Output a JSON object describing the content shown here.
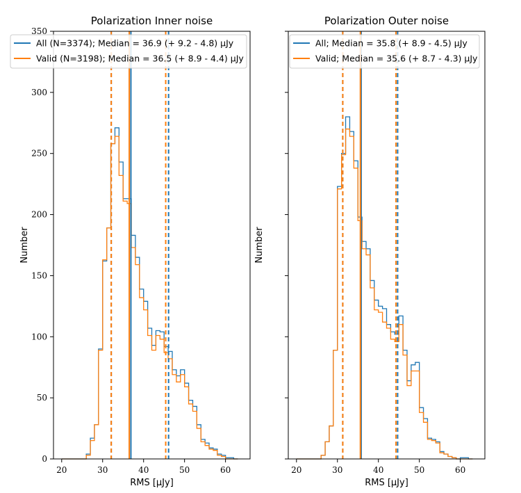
{
  "chart_data": [
    {
      "type": "histogram",
      "title": "Polarization Inner noise",
      "xlabel": "RMS [μJy]",
      "ylabel": "Number",
      "xlim": [
        18,
        66
      ],
      "ylim": [
        0,
        350
      ],
      "xticks": [
        20,
        30,
        40,
        50,
        60
      ],
      "yticks": [
        0,
        50,
        100,
        150,
        200,
        250,
        300,
        350
      ],
      "show_ytick_labels": true,
      "grid": false,
      "legend_position": "top",
      "bins": [
        20,
        21,
        22,
        23,
        24,
        25,
        26,
        27,
        28,
        29,
        30,
        31,
        32,
        33,
        34,
        35,
        36,
        37,
        38,
        39,
        40,
        41,
        42,
        43,
        44,
        45,
        46,
        47,
        48,
        49,
        50,
        51,
        52,
        53,
        54,
        55,
        56,
        57,
        58,
        59,
        60,
        61,
        62,
        63
      ],
      "series": [
        {
          "name": "All (N=3374); Median = 36.9 (+ 9.2 - 4.8) μJy",
          "color": "#1f77b4",
          "counts": [
            0,
            0,
            0,
            0,
            0,
            0,
            4,
            17,
            28,
            90,
            162,
            189,
            258,
            271,
            243,
            213,
            213,
            183,
            165,
            139,
            129,
            107,
            93,
            105,
            104,
            92,
            88,
            73,
            68,
            73,
            62,
            48,
            43,
            28,
            16,
            13,
            9,
            8,
            4,
            3,
            1,
            1,
            0
          ],
          "median": 36.9,
          "lower": 32.1,
          "upper": 46.1
        },
        {
          "name": "Valid (N=3198); Median = 36.5 (+ 8.9 - 4.4) μJy",
          "color": "#ff7f0e",
          "counts": [
            0,
            0,
            0,
            0,
            0,
            0,
            3,
            15,
            28,
            89,
            163,
            189,
            258,
            264,
            232,
            211,
            209,
            173,
            159,
            132,
            122,
            101,
            89,
            101,
            98,
            87,
            82,
            69,
            63,
            69,
            59,
            45,
            39,
            25,
            14,
            11,
            8,
            7,
            3,
            2,
            0,
            0,
            0
          ],
          "median": 36.5,
          "lower": 32.1,
          "upper": 45.4
        }
      ]
    },
    {
      "type": "histogram",
      "title": "Polarization Outer noise",
      "xlabel": "RMS [μJy]",
      "ylabel": "Number",
      "xlim": [
        18,
        66
      ],
      "ylim": [
        0,
        350
      ],
      "xticks": [
        20,
        30,
        40,
        50,
        60
      ],
      "yticks": [
        0,
        50,
        100,
        150,
        200,
        250,
        300,
        350
      ],
      "show_ytick_labels": false,
      "grid": false,
      "legend_position": "top",
      "bins": [
        20,
        21,
        22,
        23,
        24,
        25,
        26,
        27,
        28,
        29,
        30,
        31,
        32,
        33,
        34,
        35,
        36,
        37,
        38,
        39,
        40,
        41,
        42,
        43,
        44,
        45,
        46,
        47,
        48,
        49,
        50,
        51,
        52,
        53,
        54,
        55,
        56,
        57,
        58,
        59,
        60,
        61,
        62,
        63
      ],
      "series": [
        {
          "name": "All; Median = 35.8 (+ 8.9 - 4.5) μJy",
          "color": "#1f77b4",
          "counts": [
            0,
            0,
            0,
            0,
            0,
            0,
            3,
            14,
            27,
            89,
            223,
            250,
            280,
            268,
            244,
            198,
            178,
            172,
            146,
            130,
            125,
            123,
            110,
            104,
            102,
            117,
            89,
            64,
            77,
            79,
            42,
            33,
            17,
            16,
            14,
            6,
            4,
            2,
            1,
            0,
            1,
            1,
            0
          ],
          "median": 35.8,
          "lower": 31.3,
          "upper": 44.7
        },
        {
          "name": "Valid; Median = 35.6 (+ 8.7 - 4.3) μJy",
          "color": "#ff7f0e",
          "counts": [
            0,
            0,
            0,
            0,
            0,
            0,
            3,
            14,
            27,
            89,
            221,
            249,
            270,
            264,
            238,
            195,
            172,
            167,
            140,
            122,
            120,
            112,
            107,
            98,
            96,
            110,
            85,
            60,
            72,
            72,
            38,
            30,
            16,
            15,
            13,
            5,
            4,
            2,
            1,
            0,
            0,
            0,
            0
          ],
          "median": 35.6,
          "lower": 31.3,
          "upper": 44.3
        }
      ]
    }
  ]
}
